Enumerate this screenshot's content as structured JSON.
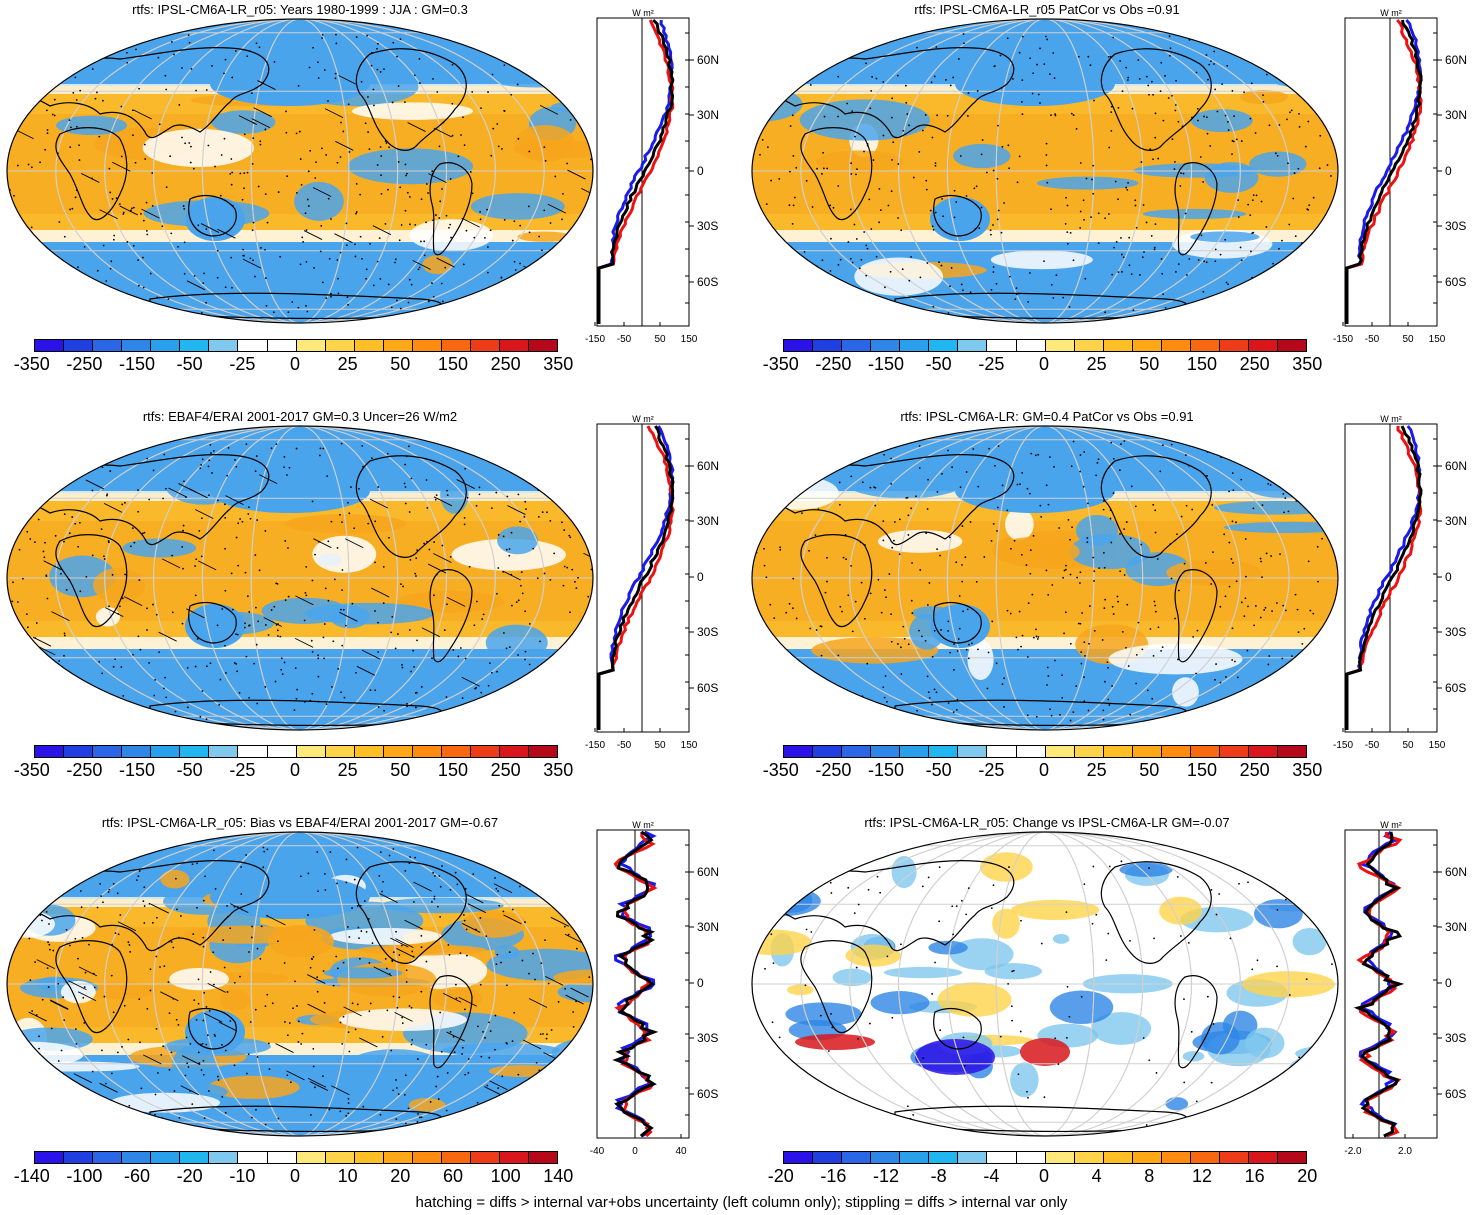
{
  "panels": [
    {
      "id": "p1",
      "title": "rtfs: IPSL-CM6A-LR_r05: Years 1980-1999 : JJA : GM=0.3",
      "colorbar_labels": [
        "-350",
        "-250",
        "-150",
        "-50",
        "-25",
        "0",
        "25",
        "50",
        "150",
        "250",
        "350"
      ],
      "profile_xticks": [
        "-150",
        "-50",
        "50",
        "150"
      ],
      "hatched": true,
      "stippled": true
    },
    {
      "id": "p2",
      "title": "rtfs: IPSL-CM6A-LR_r05 PatCor vs Obs =0.91",
      "colorbar_labels": [
        "-350",
        "-250",
        "-150",
        "-50",
        "-25",
        "0",
        "25",
        "50",
        "150",
        "250",
        "350"
      ],
      "profile_xticks": [
        "-150",
        "-50",
        "50",
        "150"
      ],
      "hatched": false,
      "stippled": true
    },
    {
      "id": "p3",
      "title": "rtfs: EBAF4/ERAI 2001-2017 GM=0.3 Uncer=26 W/m2",
      "colorbar_labels": [
        "-350",
        "-250",
        "-150",
        "-50",
        "-25",
        "0",
        "25",
        "50",
        "150",
        "250",
        "350"
      ],
      "profile_xticks": [
        "-150",
        "-50",
        "50",
        "150"
      ],
      "hatched": true,
      "stippled": true
    },
    {
      "id": "p4",
      "title": "rtfs: IPSL-CM6A-LR: GM=0.4 PatCor vs Obs =0.91",
      "colorbar_labels": [
        "-350",
        "-250",
        "-150",
        "-50",
        "-25",
        "0",
        "25",
        "50",
        "150",
        "250",
        "350"
      ],
      "profile_xticks": [
        "-150",
        "-50",
        "50",
        "150"
      ],
      "hatched": false,
      "stippled": true
    },
    {
      "id": "p5",
      "title": "rtfs: IPSL-CM6A-LR_r05: Bias vs EBAF4/ERAI 2001-2017 GM=-0.67",
      "colorbar_labels": [
        "-140",
        "-100",
        "-60",
        "-20",
        "-10",
        "0",
        "10",
        "20",
        "60",
        "100",
        "140"
      ],
      "profile_xticks": [
        "-40",
        "0",
        "40"
      ],
      "hatched": true,
      "stippled": true
    },
    {
      "id": "p6",
      "title": "rtfs: IPSL-CM6A-LR_r05: Change vs IPSL-CM6A-LR GM=-0.07",
      "colorbar_labels": [
        "-20",
        "-16",
        "-12",
        "-8",
        "-4",
        "0",
        "4",
        "8",
        "12",
        "16",
        "20"
      ],
      "profile_xticks": [
        "-2.0",
        "2.0"
      ],
      "hatched": false,
      "stippled": true
    }
  ],
  "profile_units": "W m²",
  "lat_labels": [
    "60N",
    "30N",
    "0",
    "30S",
    "60S"
  ],
  "colors": {
    "ramp": [
      "#2b12e6",
      "#1f3fe0",
      "#2a66e6",
      "#2e86e6",
      "#28a0eb",
      "#20b6ef",
      "#7fc8ee",
      "#ffffff",
      "#ffffff",
      "#ffe97a",
      "#ffd34a",
      "#ffbf25",
      "#ffa817",
      "#ff8c10",
      "#f76810",
      "#ee3c18",
      "#d8161b",
      "#b5081b"
    ],
    "ocean_warm": "#f9b92a",
    "ocean_cool": "#4aa4ec",
    "line_red": "#ee1111",
    "line_blue": "#1a1aee",
    "line_black": "#000000"
  },
  "footer": "hatching = diffs > internal var+obs uncertainty (left column only); stippling = diffs > internal var only"
}
